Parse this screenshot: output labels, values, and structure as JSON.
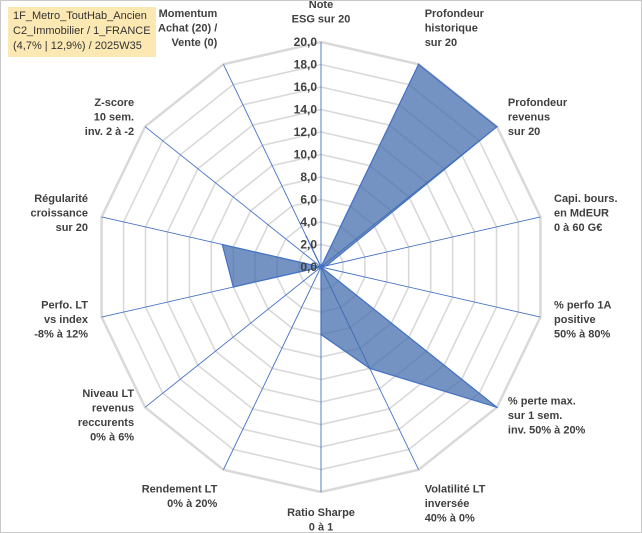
{
  "title_box": {
    "line1": "1F_Metro_ToutHab_Ancien",
    "line2": "C2_Immobilier / 1_FRANCE",
    "line3": "(4,7% | 12,9%) / 2025W35"
  },
  "chart_data": {
    "type": "radar",
    "rmin": 0,
    "rmax": 20,
    "tick_step": 2,
    "ticks": [
      "0,0",
      "2,0",
      "4,0",
      "6,0",
      "8,0",
      "10,0",
      "12,0",
      "14,0",
      "16,0",
      "18,0",
      "20,0"
    ],
    "grid": true,
    "axes": [
      {
        "label": [
          "Note",
          "ESG sur 20"
        ],
        "value": 0
      },
      {
        "label": [
          "Profondeur",
          "historique",
          "sur 20"
        ],
        "value": 20
      },
      {
        "label": [
          "Profondeur",
          "revenus",
          "sur 20"
        ],
        "value": 20
      },
      {
        "label": [
          "Capi. bours.",
          "en MdEUR",
          "0 à 60 G€"
        ],
        "value": 0.5
      },
      {
        "label": [
          "% perfo 1A",
          "positive",
          "50% à 80%"
        ],
        "value": 0
      },
      {
        "label": [
          "% perte max.",
          "sur 1 sem.",
          "inv. 50% à 20%"
        ],
        "value": 20
      },
      {
        "label": [
          "Volatilité LT",
          "inversée",
          "40% à 0%"
        ],
        "value": 10
      },
      {
        "label": [
          "Ratio Sharpe",
          "0 à 1"
        ],
        "value": 6
      },
      {
        "label": [
          "Rendement LT",
          "0% à 20%"
        ],
        "value": 0
      },
      {
        "label": [
          "Niveau LT",
          "revenus",
          "reccurents",
          "0% à 6%"
        ],
        "value": 0
      },
      {
        "label": [
          "Perfo. LT",
          "vs index",
          "-8% à 12%"
        ],
        "value": 8
      },
      {
        "label": [
          "Régularité",
          "croissance",
          "sur 20"
        ],
        "value": 9
      },
      {
        "label": [
          "Z-score",
          "10 sem.",
          "inv. 2 à -2"
        ],
        "value": 0
      },
      {
        "label": [
          "Momentum",
          "Achat (20) /",
          "Vente (0)"
        ],
        "value": 3
      }
    ]
  },
  "colors": {
    "fill": "#3e6aab",
    "stroke": "#4472c4",
    "spoke": "#4472c4",
    "grid": "#d9d9d9",
    "title_bg": "#fce8b2"
  }
}
